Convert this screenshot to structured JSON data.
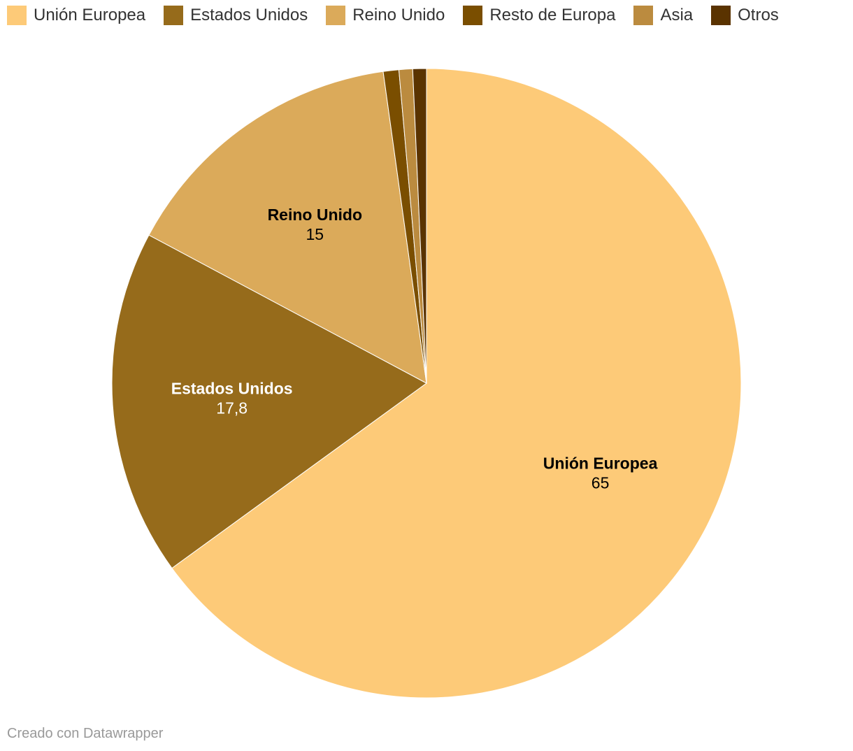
{
  "chart_data": {
    "type": "pie",
    "categories": [
      "Unión Europea",
      "Estados Unidos",
      "Reino Unido",
      "Resto de Europa",
      "Asia",
      "Otros"
    ],
    "values": [
      65,
      17.8,
      15,
      0.8,
      0.7,
      0.7
    ],
    "value_labels": [
      "65",
      "17,8",
      "15",
      "",
      "",
      ""
    ],
    "colors": [
      "#fdca78",
      "#966b1b",
      "#dbaa5a",
      "#7a4e00",
      "#bb8b3f",
      "#5a3300"
    ],
    "label_colors": [
      "#000000",
      "#ffffff",
      "#000000",
      "#000000",
      "#000000",
      "#000000"
    ],
    "start_angle_deg": 0,
    "direction": "clockwise",
    "legend_position": "top-left"
  },
  "legend": {
    "items": [
      {
        "label": "Unión Europea",
        "color": "#fdca78"
      },
      {
        "label": "Estados Unidos",
        "color": "#966b1b"
      },
      {
        "label": "Reino Unido",
        "color": "#dbaa5a"
      },
      {
        "label": "Resto de Europa",
        "color": "#7a4e00"
      },
      {
        "label": "Asia",
        "color": "#bb8b3f"
      },
      {
        "label": "Otros",
        "color": "#5a3300"
      }
    ]
  },
  "credit": "Creado con Datawrapper"
}
